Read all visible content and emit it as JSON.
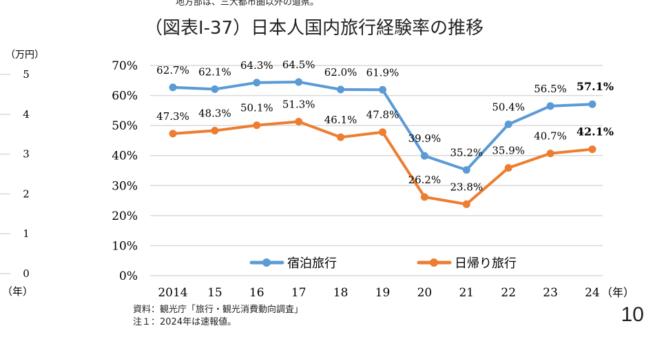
{
  "top_note": "地方部は、三大都市圏以外の道県。",
  "source_note": "資料：観光庁「旅行・観光消費動向調査」",
  "note1": "注１：2024年は速報値。",
  "page_number": "10",
  "left_axis": {
    "unit": "（万円）",
    "ticks": [
      "0",
      "1",
      "2",
      "3",
      "4",
      "5"
    ],
    "x_unit": "（年）"
  },
  "chart_data": {
    "type": "line",
    "title": "（図表Ⅰ-37）日本人国内旅行経験率の推移",
    "categories": [
      "2014",
      "15",
      "16",
      "17",
      "18",
      "19",
      "20",
      "21",
      "22",
      "23",
      "24"
    ],
    "x_unit": "（年）",
    "ylim": [
      0,
      70
    ],
    "yticks": [
      "0%",
      "10%",
      "20%",
      "30%",
      "40%",
      "50%",
      "60%",
      "70%"
    ],
    "grid": true,
    "legend": "bottom-inside",
    "series": [
      {
        "name": "宿泊旅行",
        "color": "#5b9bd5",
        "values": [
          62.7,
          62.1,
          64.3,
          64.5,
          62.0,
          61.9,
          39.9,
          35.2,
          50.4,
          56.5,
          57.1
        ],
        "labels": [
          "62.7%",
          "62.1%",
          "64.3%",
          "64.5%",
          "62.0%",
          "61.9%",
          "39.9%",
          "35.2%",
          "50.4%",
          "56.5%",
          "57.1%"
        ]
      },
      {
        "name": "日帰り旅行",
        "color": "#ed7d31",
        "values": [
          47.3,
          48.3,
          50.1,
          51.3,
          46.1,
          47.8,
          26.2,
          23.8,
          35.9,
          40.7,
          42.1
        ],
        "labels": [
          "47.3%",
          "48.3%",
          "50.1%",
          "51.3%",
          "46.1%",
          "47.8%",
          "26.2%",
          "23.8%",
          "35.9%",
          "40.7%",
          "42.1%"
        ]
      }
    ]
  }
}
